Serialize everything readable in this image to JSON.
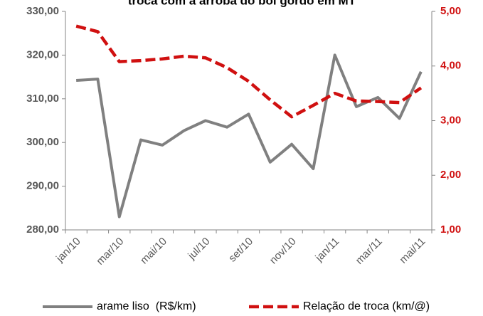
{
  "chart_data": {
    "type": "line",
    "title": "troca com a arroba do boi gordo em MT",
    "categories": [
      "jan/10",
      null,
      "mar/10",
      null,
      "mai/10",
      null,
      "jul/10",
      null,
      "set/10",
      null,
      "nov/10",
      null,
      "jan/11",
      null,
      "mar/11",
      null,
      "mai/11"
    ],
    "series": [
      {
        "name": "arame liso  (R$/km)",
        "color": "#808080",
        "dashed": false,
        "values": [
          314.2,
          314.5,
          283,
          300.6,
          299.4,
          302.7,
          305,
          303.5,
          306.5,
          295.5,
          299.6,
          294,
          320,
          308.2,
          310.3,
          305.5,
          316.2
        ]
      },
      {
        "name": "Relação de troca (km/@)",
        "color": "#d01010",
        "dashed": true,
        "axis": "y2",
        "values": [
          4.73,
          4.63,
          4.08,
          4.1,
          4.13,
          4.18,
          4.15,
          3.97,
          3.72,
          3.38,
          3.07,
          3.28,
          3.5,
          3.36,
          3.35,
          3.33,
          3.6
        ]
      }
    ],
    "ylim": [
      280,
      330
    ],
    "yticks": [
      {
        "value": 280,
        "label": "280,00"
      },
      {
        "value": 290,
        "label": "290,00"
      },
      {
        "value": 300,
        "label": "300,00"
      },
      {
        "value": 310,
        "label": "310,00"
      },
      {
        "value": 320,
        "label": "320,00"
      },
      {
        "value": 330,
        "label": "330,00"
      }
    ],
    "y2lim": [
      1,
      5
    ],
    "y2ticks": [
      {
        "value": 1,
        "label": "1,00"
      },
      {
        "value": 2,
        "label": "2,00"
      },
      {
        "value": 3,
        "label": "3,00"
      },
      {
        "value": 4,
        "label": "4,00"
      },
      {
        "value": 5,
        "label": "5,00"
      }
    ],
    "y2color": "#d01010",
    "grid": false
  }
}
